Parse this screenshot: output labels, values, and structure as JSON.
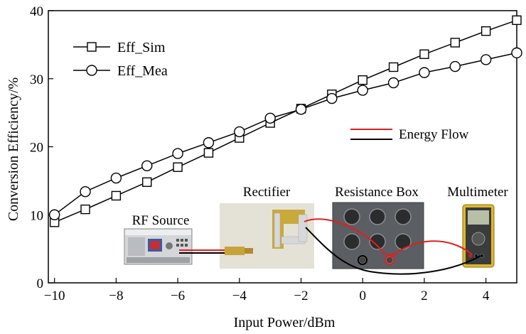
{
  "chart_data": {
    "type": "line",
    "xlabel": "Input Power/dBm",
    "ylabel": "Conversion Efficiency/%",
    "xlim": [
      -10.2,
      5
    ],
    "ylim": [
      0,
      40
    ],
    "xticks": [
      -10,
      -8,
      -6,
      -4,
      -2,
      0,
      2,
      4
    ],
    "yticks": [
      0,
      10,
      20,
      30,
      40
    ],
    "x": [
      -10,
      -9,
      -8,
      -7,
      -6,
      -5,
      -4,
      -3,
      -2,
      -1,
      0,
      1,
      2,
      3,
      4,
      5
    ],
    "series": [
      {
        "name": "Eff_Sim",
        "marker": "square",
        "values": [
          8.9,
          10.8,
          12.8,
          14.8,
          17.0,
          19.1,
          21.3,
          23.5,
          25.6,
          27.7,
          29.8,
          31.7,
          33.6,
          35.3,
          37.0,
          38.6
        ]
      },
      {
        "name": "Eff_Mea",
        "marker": "circle",
        "values": [
          10.0,
          13.4,
          15.4,
          17.2,
          19.0,
          20.6,
          22.2,
          24.2,
          25.5,
          27.1,
          28.3,
          29.4,
          30.9,
          31.8,
          32.8,
          33.8
        ]
      }
    ],
    "legend_position": "top-left",
    "grid": false
  },
  "inset": {
    "legend": {
      "energy_flow_label": "Energy Flow",
      "energy_flow_color": "#e02020",
      "wire_color": "#000000"
    },
    "labels": {
      "rf_source": "RF Source",
      "rectifier": "Rectifier",
      "resistance_box": "Resistance Box",
      "multimeter": "Multimeter"
    }
  }
}
